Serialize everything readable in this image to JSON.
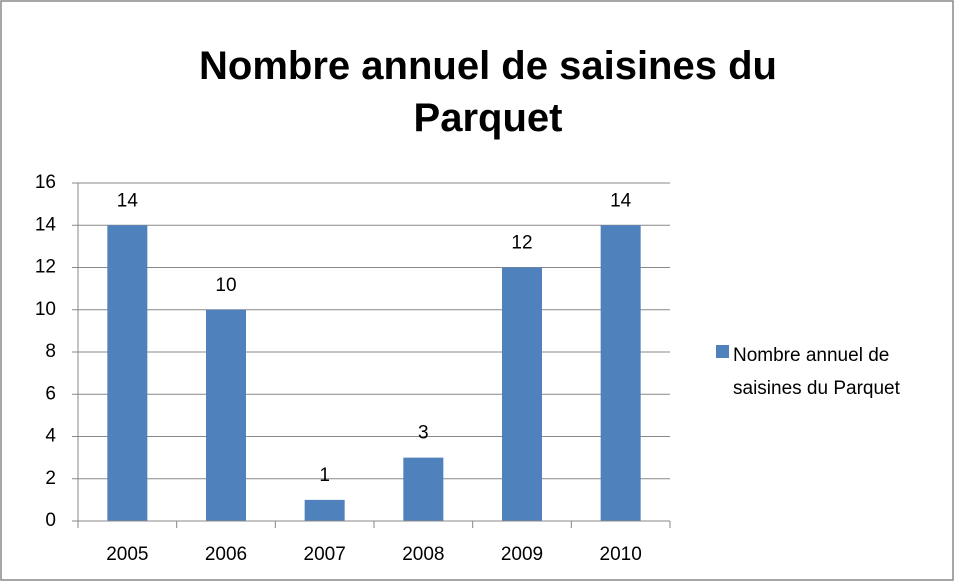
{
  "chart_data": {
    "type": "bar",
    "title": "Nombre annuel de saisines du Parquet",
    "categories": [
      "2005",
      "2006",
      "2007",
      "2008",
      "2009",
      "2010"
    ],
    "series": [
      {
        "name": "Nombre annuel de saisines du Parquet",
        "color": "#4f81bd",
        "values": [
          14,
          10,
          1,
          3,
          12,
          14
        ]
      }
    ],
    "ylim": [
      0,
      16
    ],
    "yticks": [
      0,
      2,
      4,
      6,
      8,
      10,
      12,
      14,
      16
    ],
    "grid": true,
    "legend": "right",
    "data_labels": true
  }
}
